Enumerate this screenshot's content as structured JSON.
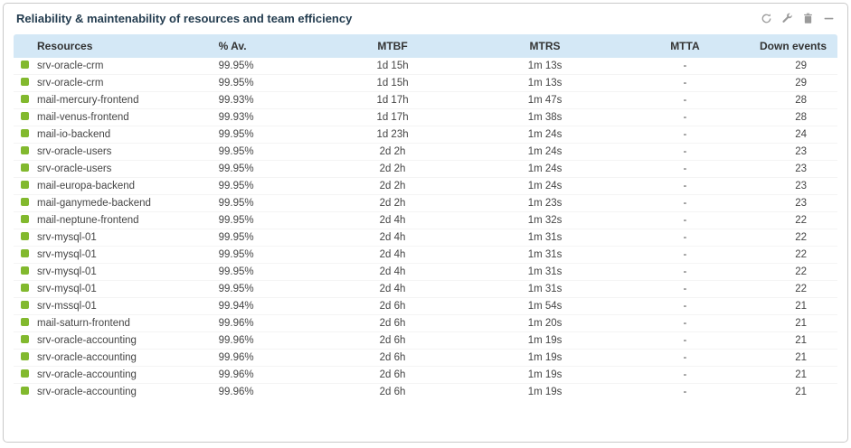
{
  "widget": {
    "title": "Reliability & maintenability of resources and team efficiency",
    "toolbar": {
      "refresh": "refresh",
      "configure": "configure",
      "delete": "delete",
      "collapse": "collapse"
    }
  },
  "colors": {
    "status_ok": "#82b92e",
    "table_header_bg": "#d4e8f6",
    "title_color": "#233c4f",
    "icon_color": "#9a9a9a"
  },
  "table": {
    "columns": [
      "Resources",
      "% Av.",
      "MTBF",
      "MTRS",
      "MTTA",
      "Down events"
    ],
    "rows": [
      {
        "name": "srv-oracle-crm",
        "availability": "99.95%",
        "mtbf": "1d 15h",
        "mtrs": "1m 13s",
        "mtta": "-",
        "down_events": "29"
      },
      {
        "name": "srv-oracle-crm",
        "availability": "99.95%",
        "mtbf": "1d 15h",
        "mtrs": "1m 13s",
        "mtta": "-",
        "down_events": "29"
      },
      {
        "name": "mail-mercury-frontend",
        "availability": "99.93%",
        "mtbf": "1d 17h",
        "mtrs": "1m 47s",
        "mtta": "-",
        "down_events": "28"
      },
      {
        "name": "mail-venus-frontend",
        "availability": "99.93%",
        "mtbf": "1d 17h",
        "mtrs": "1m 38s",
        "mtta": "-",
        "down_events": "28"
      },
      {
        "name": "mail-io-backend",
        "availability": "99.95%",
        "mtbf": "1d 23h",
        "mtrs": "1m 24s",
        "mtta": "-",
        "down_events": "24"
      },
      {
        "name": "srv-oracle-users",
        "availability": "99.95%",
        "mtbf": "2d 2h",
        "mtrs": "1m 24s",
        "mtta": "-",
        "down_events": "23"
      },
      {
        "name": "srv-oracle-users",
        "availability": "99.95%",
        "mtbf": "2d 2h",
        "mtrs": "1m 24s",
        "mtta": "-",
        "down_events": "23"
      },
      {
        "name": "mail-europa-backend",
        "availability": "99.95%",
        "mtbf": "2d 2h",
        "mtrs": "1m 24s",
        "mtta": "-",
        "down_events": "23"
      },
      {
        "name": "mail-ganymede-backend",
        "availability": "99.95%",
        "mtbf": "2d 2h",
        "mtrs": "1m 23s",
        "mtta": "-",
        "down_events": "23"
      },
      {
        "name": "mail-neptune-frontend",
        "availability": "99.95%",
        "mtbf": "2d 4h",
        "mtrs": "1m 32s",
        "mtta": "-",
        "down_events": "22"
      },
      {
        "name": "srv-mysql-01",
        "availability": "99.95%",
        "mtbf": "2d 4h",
        "mtrs": "1m 31s",
        "mtta": "-",
        "down_events": "22"
      },
      {
        "name": "srv-mysql-01",
        "availability": "99.95%",
        "mtbf": "2d 4h",
        "mtrs": "1m 31s",
        "mtta": "-",
        "down_events": "22"
      },
      {
        "name": "srv-mysql-01",
        "availability": "99.95%",
        "mtbf": "2d 4h",
        "mtrs": "1m 31s",
        "mtta": "-",
        "down_events": "22"
      },
      {
        "name": "srv-mysql-01",
        "availability": "99.95%",
        "mtbf": "2d 4h",
        "mtrs": "1m 31s",
        "mtta": "-",
        "down_events": "22"
      },
      {
        "name": "srv-mssql-01",
        "availability": "99.94%",
        "mtbf": "2d 6h",
        "mtrs": "1m 54s",
        "mtta": "-",
        "down_events": "21"
      },
      {
        "name": "mail-saturn-frontend",
        "availability": "99.96%",
        "mtbf": "2d 6h",
        "mtrs": "1m 20s",
        "mtta": "-",
        "down_events": "21"
      },
      {
        "name": "srv-oracle-accounting",
        "availability": "99.96%",
        "mtbf": "2d 6h",
        "mtrs": "1m 19s",
        "mtta": "-",
        "down_events": "21"
      },
      {
        "name": "srv-oracle-accounting",
        "availability": "99.96%",
        "mtbf": "2d 6h",
        "mtrs": "1m 19s",
        "mtta": "-",
        "down_events": "21"
      },
      {
        "name": "srv-oracle-accounting",
        "availability": "99.96%",
        "mtbf": "2d 6h",
        "mtrs": "1m 19s",
        "mtta": "-",
        "down_events": "21"
      },
      {
        "name": "srv-oracle-accounting",
        "availability": "99.96%",
        "mtbf": "2d 6h",
        "mtrs": "1m 19s",
        "mtta": "-",
        "down_events": "21"
      }
    ]
  }
}
